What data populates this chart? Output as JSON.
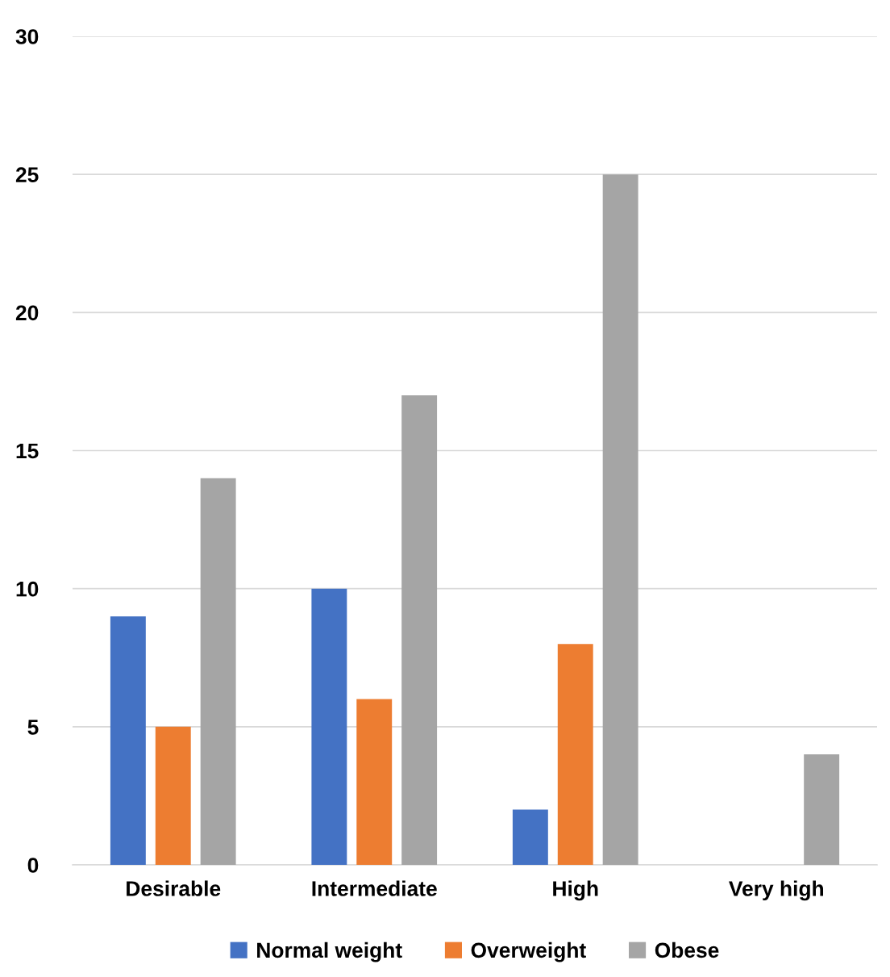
{
  "chart_data": {
    "type": "bar",
    "categories": [
      "Desirable",
      "Intermediate",
      "High",
      "Very high"
    ],
    "series": [
      {
        "name": "Normal weight",
        "color": "#4472c4",
        "values": [
          9,
          10,
          2,
          0
        ]
      },
      {
        "name": "Overweight",
        "color": "#ed7d31",
        "values": [
          5,
          6,
          8,
          0
        ]
      },
      {
        "name": "Obese",
        "color": "#a5a5a5",
        "values": [
          14,
          17,
          25,
          4
        ]
      }
    ],
    "ylim": [
      0,
      30
    ],
    "yticks": [
      0,
      5,
      10,
      15,
      20,
      25,
      30
    ],
    "grid": "y",
    "legend": "bottom"
  }
}
